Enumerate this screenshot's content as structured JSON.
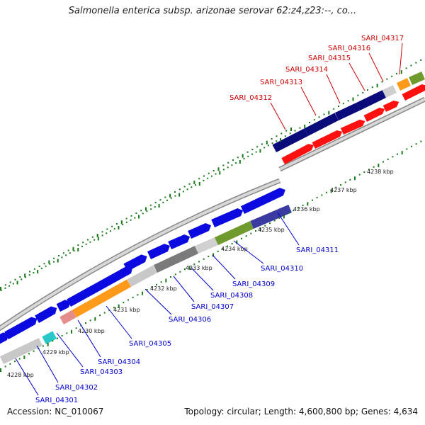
{
  "title": "Salmonella enterica subsp. arizonae serovar 62:z4,z23:--, co...",
  "footer": {
    "accession": "Accession: NC_010067",
    "stats": "Topology: circular; Length: 4,600,800 bp; Genes: 4,634"
  },
  "tick_labels": [
    "4228 kbp",
    "4229 kbp",
    "4230 kbp",
    "4231 kbp",
    "4232 kbp",
    "4233 kbp",
    "4234 kbp",
    "4235 kbp",
    "4236 kbp",
    "4237 kbp",
    "4238 kbp"
  ],
  "colors": {
    "label_forward": "#0000cc",
    "label_reverse": "#cc0000",
    "tick": "#1a7a1a",
    "backbone": "#808080"
  },
  "forward_labels": [
    "SARI_04301",
    "SARI_04302",
    "SARI_04303",
    "SARI_04304",
    "SARI_04305",
    "SARI_04306",
    "SARI_04307",
    "SARI_04308",
    "SARI_04309",
    "SARI_04310",
    "SARI_04311"
  ],
  "reverse_labels": [
    "SARI_04312",
    "SARI_04313",
    "SARI_04314",
    "SARI_04315",
    "SARI_04316",
    "SARI_04317"
  ]
}
